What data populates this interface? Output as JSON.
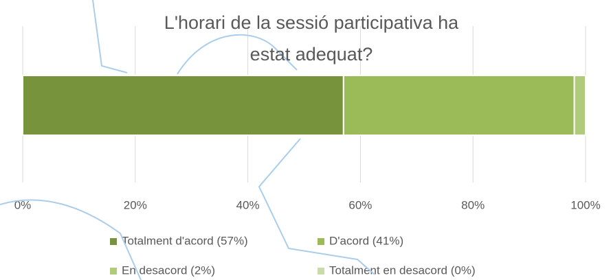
{
  "chart_data": {
    "type": "stacked-bar-horizontal",
    "title": "L'horari de la sessió participativa ha estat adequat?",
    "series": [
      {
        "name": "Totalment d'acord (57%)",
        "color": "#77933c",
        "values": [
          57
        ]
      },
      {
        "name": "D'acord (41%)",
        "color": "#9bbb59",
        "values": [
          41
        ]
      },
      {
        "name": "En desacord (2%)",
        "color": "#b0cb7c",
        "values": [
          2
        ]
      },
      {
        "name": "Totalment en desacord (0%)",
        "color": "#c9dba6",
        "values": [
          0
        ]
      }
    ],
    "xlim": [
      0,
      100
    ],
    "xticks": [
      {
        "value": 0,
        "label": "0%"
      },
      {
        "value": 20,
        "label": "20%"
      },
      {
        "value": 40,
        "label": "40%"
      },
      {
        "value": 60,
        "label": "60%"
      },
      {
        "value": 80,
        "label": "80%"
      },
      {
        "value": 100,
        "label": "100%"
      }
    ],
    "grid": true
  }
}
